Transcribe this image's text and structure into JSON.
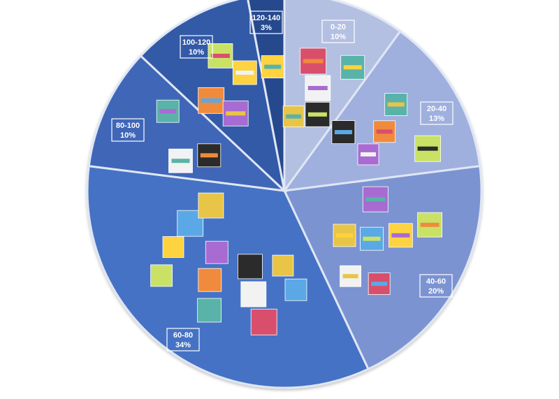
{
  "chart_data": {
    "type": "pie",
    "title": "",
    "slices": [
      {
        "range": "0-20",
        "pct": "10%",
        "value": 10,
        "color": "#b4c0e2",
        "covers": 5
      },
      {
        "range": "20-40",
        "pct": "13%",
        "value": 13,
        "color": "#9fb0de",
        "covers": 5
      },
      {
        "range": "40-60",
        "pct": "20%",
        "value": 20,
        "color": "#7b93d2",
        "covers": 7
      },
      {
        "range": "60-80",
        "pct": "34%",
        "value": 34,
        "color": "#4472c4",
        "covers": 12
      },
      {
        "range": "80-100",
        "pct": "10%",
        "value": 10,
        "color": "#3f66b8",
        "covers": 3
      },
      {
        "range": "100-120",
        "pct": "10%",
        "value": 10,
        "color": "#335aa7",
        "covers": 4
      },
      {
        "range": "120-140",
        "pct": "3%",
        "value": 3,
        "color": "#27498e",
        "covers": 1
      }
    ],
    "start_angle_deg": 0,
    "direction": "clockwise",
    "thumb_palette": [
      "#e8c547",
      "#d94f6b",
      "#f2f2f2",
      "#2b2b2b",
      "#59b3a8",
      "#f08a3c",
      "#a86bd1",
      "#c9e265",
      "#ffd23f",
      "#5aa9e6"
    ]
  }
}
